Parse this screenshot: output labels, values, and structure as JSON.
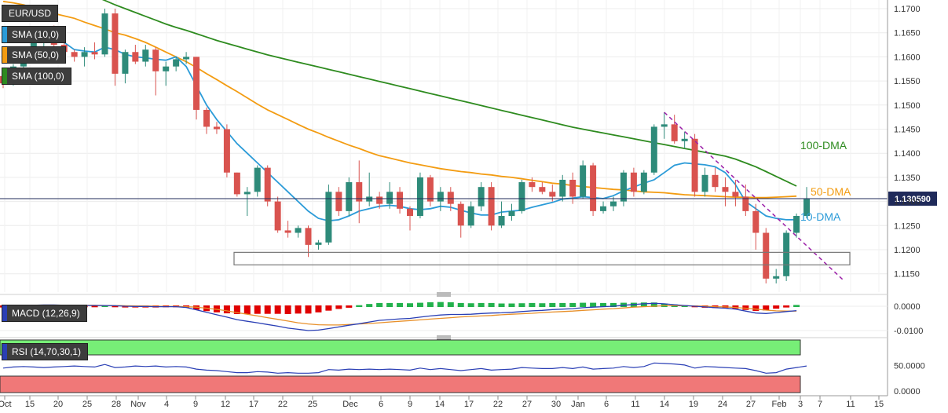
{
  "symbol": "EUR/USD",
  "price_label": "1.130590",
  "colors": {
    "bull": "#2e8b7a",
    "bear": "#d9534f",
    "sma10": "#2b9bd8",
    "sma50": "#f39c12",
    "sma100": "#2e8b1f",
    "trend": "#9b1fa8",
    "macd": "#2a3fb5",
    "signal": "#e8902a",
    "hist_pos": "#22b14c",
    "hist_neg": "#e00000",
    "rsi": "#2a3fb5",
    "rsi_upper": "#77ee77",
    "rsi_lower": "#f07878"
  },
  "chart_data": [
    {
      "type": "candlestick",
      "title": "EUR/USD",
      "legend": [
        "SMA (10,0)",
        "SMA (50,0)",
        "SMA (100,0)"
      ],
      "ylim": [
        1.1115,
        1.172
      ],
      "y_ticks": [
        "1.1700",
        "1.1650",
        "1.1600",
        "1.1550",
        "1.1500",
        "1.1450",
        "1.1400",
        "1.1350",
        "1.1300",
        "1.1250",
        "1.1200",
        "1.1150"
      ],
      "x_ticks": [
        "Oct",
        "15",
        "20",
        "25",
        "28",
        "Nov",
        "4",
        "9",
        "12",
        "17",
        "22",
        "25",
        "Dec",
        "6",
        "9",
        "14",
        "17",
        "22",
        "27",
        "30",
        "Jan",
        "6",
        "11",
        "14",
        "19",
        "24",
        "27",
        "Feb",
        "3",
        "7",
        "11",
        "15"
      ],
      "annotations": [
        "100-DMA",
        "50-DMA",
        "10-DMA"
      ],
      "last_price": "1.130590",
      "candles": [
        [
          1.156,
          1.1575,
          1.1535,
          1.1545
        ],
        [
          1.1545,
          1.1585,
          1.154,
          1.158
        ],
        [
          1.158,
          1.161,
          1.1575,
          1.16
        ],
        [
          1.16,
          1.164,
          1.1595,
          1.163
        ],
        [
          1.163,
          1.166,
          1.162,
          1.165
        ],
        [
          1.165,
          1.1665,
          1.1615,
          1.1625
        ],
        [
          1.1625,
          1.164,
          1.16,
          1.161
        ],
        [
          1.161,
          1.1615,
          1.159,
          1.16
        ],
        [
          1.16,
          1.162,
          1.158,
          1.161
        ],
        [
          1.161,
          1.163,
          1.1595,
          1.1605
        ],
        [
          1.1605,
          1.17,
          1.16,
          1.169
        ],
        [
          1.169,
          1.17,
          1.154,
          1.1565
        ],
        [
          1.1565,
          1.1615,
          1.1545,
          1.161
        ],
        [
          1.161,
          1.1625,
          1.1585,
          1.159
        ],
        [
          1.159,
          1.1625,
          1.158,
          1.1615
        ],
        [
          1.1615,
          1.162,
          1.152,
          1.157
        ],
        [
          1.157,
          1.159,
          1.154,
          1.158
        ],
        [
          1.158,
          1.16,
          1.157,
          1.1595
        ],
        [
          1.1595,
          1.161,
          1.1585,
          1.16
        ],
        [
          1.16,
          1.16,
          1.147,
          1.149
        ],
        [
          1.149,
          1.1495,
          1.144,
          1.1455
        ],
        [
          1.1455,
          1.1465,
          1.144,
          1.145
        ],
        [
          1.145,
          1.146,
          1.135,
          1.136
        ],
        [
          1.136,
          1.136,
          1.131,
          1.1315
        ],
        [
          1.1315,
          1.133,
          1.127,
          1.132
        ],
        [
          1.132,
          1.1375,
          1.131,
          1.137
        ],
        [
          1.137,
          1.1375,
          1.129,
          1.13
        ],
        [
          1.13,
          1.131,
          1.1235,
          1.124
        ],
        [
          1.124,
          1.126,
          1.1225,
          1.1235
        ],
        [
          1.1235,
          1.125,
          1.1225,
          1.1245
        ],
        [
          1.1245,
          1.125,
          1.1185,
          1.121
        ],
        [
          1.121,
          1.122,
          1.12,
          1.1215
        ],
        [
          1.1215,
          1.1335,
          1.121,
          1.132
        ],
        [
          1.132,
          1.133,
          1.127,
          1.128
        ],
        [
          1.128,
          1.135,
          1.127,
          1.134
        ],
        [
          1.134,
          1.1385,
          1.1255,
          1.13
        ],
        [
          1.13,
          1.136,
          1.129,
          1.131
        ],
        [
          1.131,
          1.132,
          1.1285,
          1.1295
        ],
        [
          1.1295,
          1.134,
          1.1285,
          1.132
        ],
        [
          1.132,
          1.133,
          1.1275,
          1.1285
        ],
        [
          1.1285,
          1.129,
          1.124,
          1.127
        ],
        [
          1.127,
          1.136,
          1.1265,
          1.135
        ],
        [
          1.135,
          1.1355,
          1.129,
          1.13
        ],
        [
          1.13,
          1.133,
          1.128,
          1.132
        ],
        [
          1.132,
          1.133,
          1.128,
          1.1295
        ],
        [
          1.1295,
          1.13,
          1.1225,
          1.125
        ],
        [
          1.125,
          1.13,
          1.1245,
          1.129
        ],
        [
          1.129,
          1.134,
          1.128,
          1.133
        ],
        [
          1.133,
          1.134,
          1.124,
          1.125
        ],
        [
          1.125,
          1.13,
          1.1245,
          1.127
        ],
        [
          1.127,
          1.1295,
          1.126,
          1.128
        ],
        [
          1.128,
          1.1345,
          1.1275,
          1.134
        ],
        [
          1.134,
          1.135,
          1.132,
          1.133
        ],
        [
          1.133,
          1.134,
          1.1315,
          1.132
        ],
        [
          1.132,
          1.1335,
          1.13,
          1.131
        ],
        [
          1.131,
          1.1355,
          1.13,
          1.1345
        ],
        [
          1.1345,
          1.136,
          1.1295,
          1.131
        ],
        [
          1.131,
          1.1385,
          1.1305,
          1.1375
        ],
        [
          1.1375,
          1.138,
          1.127,
          1.128
        ],
        [
          1.128,
          1.13,
          1.1275,
          1.129
        ],
        [
          1.129,
          1.131,
          1.128,
          1.13
        ],
        [
          1.13,
          1.1365,
          1.129,
          1.136
        ],
        [
          1.136,
          1.137,
          1.131,
          1.132
        ],
        [
          1.132,
          1.1365,
          1.1315,
          1.136
        ],
        [
          1.136,
          1.146,
          1.1355,
          1.1455
        ],
        [
          1.1455,
          1.1485,
          1.143,
          1.146
        ],
        [
          1.146,
          1.148,
          1.142,
          1.1425
        ],
        [
          1.1425,
          1.1445,
          1.141,
          1.143
        ],
        [
          1.143,
          1.144,
          1.131,
          1.132
        ],
        [
          1.132,
          1.137,
          1.131,
          1.1355
        ],
        [
          1.1355,
          1.137,
          1.132,
          1.133
        ],
        [
          1.133,
          1.135,
          1.129,
          1.132
        ],
        [
          1.132,
          1.1345,
          1.129,
          1.131
        ],
        [
          1.131,
          1.1335,
          1.127,
          1.128
        ],
        [
          1.128,
          1.1295,
          1.12,
          1.1235
        ],
        [
          1.1235,
          1.1245,
          1.113,
          1.114
        ],
        [
          1.114,
          1.116,
          1.113,
          1.1145
        ],
        [
          1.1145,
          1.124,
          1.1135,
          1.1235
        ],
        [
          1.1235,
          1.1275,
          1.1225,
          1.127
        ],
        [
          1.127,
          1.133,
          1.1265,
          1.1305
        ]
      ],
      "sma10": [
        1.1655,
        1.165,
        1.1655,
        1.166,
        1.165,
        1.164,
        1.163,
        1.1615,
        1.1612,
        1.161,
        1.162,
        1.1615,
        1.1605,
        1.16,
        1.1598,
        1.1595,
        1.1593,
        1.16,
        1.158,
        1.154,
        1.15,
        1.147,
        1.1445,
        1.142,
        1.14,
        1.138,
        1.136,
        1.134,
        1.132,
        1.13,
        1.128,
        1.1265,
        1.126,
        1.1262,
        1.127,
        1.128,
        1.1285,
        1.129,
        1.1292,
        1.129,
        1.1285,
        1.1283,
        1.1285,
        1.129,
        1.1288,
        1.1282,
        1.1276,
        1.1272,
        1.1272,
        1.1278,
        1.128,
        1.1282,
        1.1288,
        1.1293,
        1.1298,
        1.1305,
        1.1307,
        1.131,
        1.1308,
        1.1306,
        1.1312,
        1.1322,
        1.133,
        1.1338,
        1.1345,
        1.136,
        1.1375,
        1.138,
        1.1378,
        1.1376,
        1.1372,
        1.136,
        1.1335,
        1.13,
        1.1285,
        1.127,
        1.1265,
        1.1262,
        1.1262
      ],
      "sma50": [
        1.1715,
        1.1712,
        1.1708,
        1.1702,
        1.1695,
        1.169,
        1.1685,
        1.168,
        1.1672,
        1.1665,
        1.1658,
        1.165,
        1.1645,
        1.1638,
        1.163,
        1.162,
        1.161,
        1.16,
        1.159,
        1.1578,
        1.1565,
        1.1553,
        1.154,
        1.1528,
        1.1515,
        1.1502,
        1.149,
        1.148,
        1.147,
        1.146,
        1.145,
        1.1442,
        1.1433,
        1.1425,
        1.1417,
        1.141,
        1.1402,
        1.1395,
        1.139,
        1.1385,
        1.138,
        1.1376,
        1.1372,
        1.1368,
        1.1365,
        1.1362,
        1.136,
        1.1357,
        1.1355,
        1.1352,
        1.135,
        1.1347,
        1.1344,
        1.1341,
        1.1338,
        1.1336,
        1.1333,
        1.1331,
        1.1329,
        1.1327,
        1.1325,
        1.1324,
        1.1322,
        1.132,
        1.1319,
        1.1318,
        1.1316,
        1.1314,
        1.1313,
        1.1312,
        1.1311,
        1.131,
        1.1309,
        1.1309,
        1.1308,
        1.1308,
        1.1309,
        1.131,
        1.1311
      ],
      "sma100": [
        1.179,
        1.1785,
        1.178,
        1.1775,
        1.1768,
        1.176,
        1.1752,
        1.1744,
        1.1735,
        1.1726,
        1.1717,
        1.1708,
        1.17,
        1.1692,
        1.1684,
        1.1676,
        1.1668,
        1.1661,
        1.1655,
        1.1648,
        1.1641,
        1.1634,
        1.1628,
        1.1622,
        1.1616,
        1.161,
        1.1604,
        1.1599,
        1.1594,
        1.1589,
        1.1584,
        1.1579,
        1.1574,
        1.1569,
        1.1564,
        1.1559,
        1.1554,
        1.1549,
        1.1544,
        1.1539,
        1.1534,
        1.1529,
        1.1524,
        1.1519,
        1.1514,
        1.1509,
        1.1504,
        1.1499,
        1.1494,
        1.1489,
        1.1484,
        1.1479,
        1.1474,
        1.1469,
        1.1464,
        1.1459,
        1.1454,
        1.145,
        1.1446,
        1.1442,
        1.1438,
        1.1434,
        1.143,
        1.1426,
        1.1422,
        1.1418,
        1.1414,
        1.141,
        1.1406,
        1.1402,
        1.1398,
        1.1394,
        1.1388,
        1.138,
        1.1372,
        1.1362,
        1.1352,
        1.1342,
        1.1332
      ],
      "trendline": [
        [
          65,
          1.1485
        ],
        [
          81,
          1.1135
        ]
      ],
      "support_zone": [
        1.1175,
        1.1188
      ]
    },
    {
      "type": "line",
      "title": "MACD (12,26,9)",
      "y_ticks": [
        "0.0000",
        "-0.0100"
      ],
      "ylim": [
        -0.012,
        0.002
      ],
      "macd": [
        0.0,
        0.0002,
        0.0003,
        0.0004,
        0.0005,
        0.0005,
        0.0004,
        0.0004,
        0.0003,
        0.0003,
        0.0003,
        0.0002,
        0.0,
        -0.0001,
        -0.0001,
        -0.0002,
        -0.0002,
        -0.0002,
        -0.0005,
        -0.0015,
        -0.0025,
        -0.0035,
        -0.0045,
        -0.0055,
        -0.0062,
        -0.0068,
        -0.0075,
        -0.0082,
        -0.009,
        -0.0095,
        -0.01,
        -0.0098,
        -0.0092,
        -0.0085,
        -0.0078,
        -0.0072,
        -0.0065,
        -0.0058,
        -0.0055,
        -0.0052,
        -0.005,
        -0.0045,
        -0.004,
        -0.0036,
        -0.0034,
        -0.0034,
        -0.0033,
        -0.003,
        -0.0028,
        -0.0027,
        -0.0025,
        -0.0022,
        -0.0019,
        -0.0017,
        -0.0014,
        -0.0012,
        -0.001,
        -0.0006,
        -0.0004,
        -0.0002,
        0.0,
        0.0004,
        0.0007,
        0.001,
        0.0012,
        0.001,
        0.0006,
        0.0003,
        0.0,
        -0.0003,
        -0.0006,
        -0.0008,
        -0.0012,
        -0.002,
        -0.0028,
        -0.003,
        -0.0026,
        -0.0022,
        -0.0018
      ],
      "signal": [
        0.0002,
        0.0002,
        0.0002,
        0.0003,
        0.0003,
        0.0004,
        0.0004,
        0.0004,
        0.0004,
        0.0004,
        0.0003,
        0.0003,
        0.0002,
        0.0001,
        0.0001,
        0.0,
        -0.0001,
        -0.0001,
        -0.0002,
        -0.0004,
        -0.0008,
        -0.0013,
        -0.0019,
        -0.0026,
        -0.0033,
        -0.004,
        -0.0047,
        -0.0054,
        -0.0061,
        -0.0068,
        -0.0073,
        -0.0076,
        -0.0077,
        -0.0077,
        -0.0075,
        -0.0073,
        -0.0071,
        -0.0068,
        -0.0065,
        -0.0062,
        -0.0059,
        -0.0056,
        -0.0053,
        -0.005,
        -0.0047,
        -0.0044,
        -0.0042,
        -0.004,
        -0.0038,
        -0.0035,
        -0.0033,
        -0.0031,
        -0.0029,
        -0.0026,
        -0.0024,
        -0.0022,
        -0.002,
        -0.0017,
        -0.0015,
        -0.0012,
        -0.001,
        -0.0007,
        -0.0004,
        -0.0002,
        0.0,
        0.0002,
        0.0002,
        0.0002,
        0.0001,
        0.0,
        -0.0002,
        -0.0003,
        -0.0005,
        -0.0008,
        -0.0012,
        -0.0016,
        -0.0019,
        -0.002,
        -0.002
      ]
    },
    {
      "type": "line",
      "title": "RSI (14,70,30,1)",
      "y_ticks": [
        "50.0000",
        "0.0000"
      ],
      "ylim": [
        0,
        100
      ],
      "bands": [
        70,
        30
      ],
      "rsi": [
        45,
        47,
        48,
        47,
        46,
        47,
        48,
        49,
        48,
        47,
        52,
        46,
        47,
        49,
        48,
        49,
        47,
        48,
        47,
        43,
        41,
        40,
        38,
        36,
        36,
        38,
        37,
        35,
        36,
        35,
        35,
        36,
        42,
        41,
        43,
        42,
        43,
        42,
        43,
        42,
        41,
        45,
        42,
        44,
        42,
        40,
        42,
        44,
        41,
        42,
        43,
        46,
        45,
        44,
        44,
        46,
        44,
        47,
        43,
        44,
        45,
        48,
        46,
        48,
        55,
        54,
        53,
        51,
        45,
        48,
        47,
        46,
        45,
        44,
        40,
        35,
        36,
        43,
        46,
        49
      ]
    }
  ]
}
